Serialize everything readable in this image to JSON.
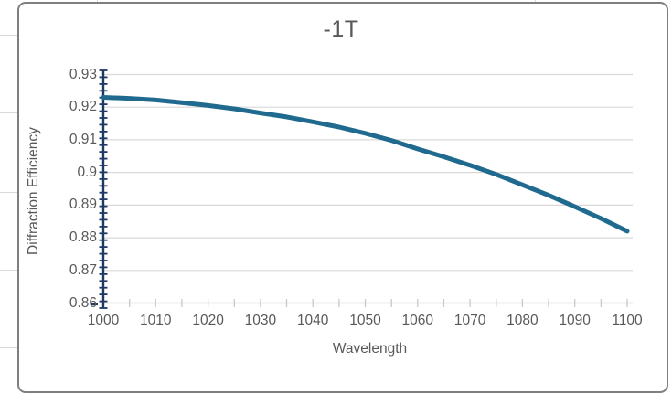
{
  "chart_data": {
    "type": "line",
    "title": "-1T",
    "xlabel": "Wavelength",
    "ylabel": "Diffraction Efficiency",
    "x": [
      1000,
      1005,
      1010,
      1015,
      1020,
      1025,
      1030,
      1035,
      1040,
      1045,
      1050,
      1055,
      1060,
      1065,
      1070,
      1075,
      1080,
      1085,
      1090,
      1095,
      1100
    ],
    "series": [
      {
        "name": "-1T",
        "color": "#1F6A8E",
        "values": [
          0.923,
          0.9227,
          0.9222,
          0.9214,
          0.9205,
          0.9195,
          0.9182,
          0.917,
          0.9155,
          0.9139,
          0.912,
          0.9098,
          0.9072,
          0.9048,
          0.9022,
          0.8994,
          0.8962,
          0.893,
          0.8895,
          0.8859,
          0.882
        ]
      }
    ],
    "xlim": [
      1000,
      1100
    ],
    "ylim": [
      0.86,
      0.93
    ],
    "x_major_unit": 10,
    "x_minor_unit": 5,
    "y_major_unit": 0.01,
    "y_minor_unit": 0.002,
    "x_tick_labels": [
      "1000",
      "1010",
      "1020",
      "1030",
      "1040",
      "1050",
      "1060",
      "1070",
      "1080",
      "1090",
      "1100"
    ],
    "y_tick_labels": [
      "0.93",
      "0.92",
      "0.91",
      "0.9",
      "0.89",
      "0.88",
      "0.87",
      "0.86"
    ],
    "grid": "horizontal-major",
    "legend": "none"
  },
  "colors": {
    "line": "#1F6A8E",
    "y_axis": "#1F3864",
    "gridline": "#D9D9D9",
    "axis_gray": "#C9C9C9",
    "text": "#595959",
    "chart_border": "#7F7F7F"
  }
}
